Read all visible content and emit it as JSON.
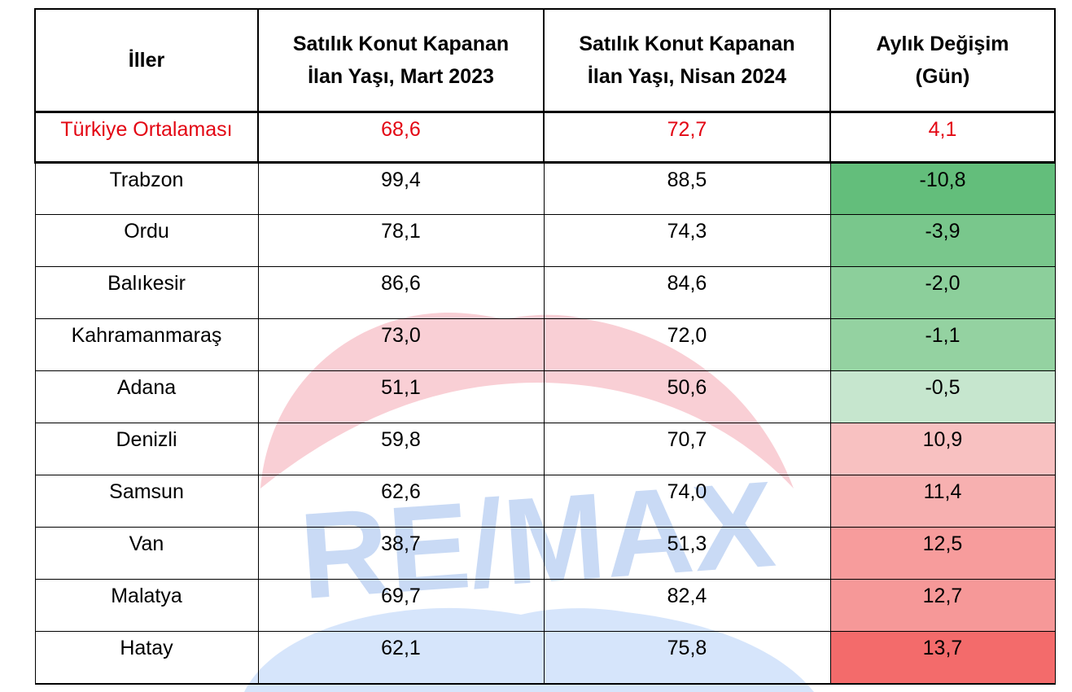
{
  "table": {
    "headers": [
      {
        "lines": [
          "İller"
        ]
      },
      {
        "lines": [
          "Satılık Konut Kapanan",
          "İlan Yaşı, Mart 2023"
        ]
      },
      {
        "lines": [
          "Satılık Konut Kapanan",
          "İlan Yaşı, Nisan 2024"
        ]
      },
      {
        "lines": [
          "Aylık Değişim",
          "(Gün)"
        ]
      }
    ],
    "average": {
      "name": "Türkiye Ortalaması",
      "mar_2023": "68,6",
      "apr_2024": "72,7",
      "change": "4,1"
    },
    "rows": [
      {
        "name": "Trabzon",
        "mar_2023": "99,4",
        "apr_2024": "88,5",
        "change": "-10,8",
        "change_color": "#63be7b"
      },
      {
        "name": "Ordu",
        "mar_2023": "78,1",
        "apr_2024": "74,3",
        "change": "-3,9",
        "change_color": "#79c78c"
      },
      {
        "name": "Balıkesir",
        "mar_2023": "86,6",
        "apr_2024": "84,6",
        "change": "-2,0",
        "change_color": "#8ccf9b"
      },
      {
        "name": "Kahramanmaraş",
        "mar_2023": "73,0",
        "apr_2024": "72,0",
        "change": "-1,1",
        "change_color": "#94d2a1"
      },
      {
        "name": "Adana",
        "mar_2023": "51,1",
        "apr_2024": "50,6",
        "change": "-0,5",
        "change_color": "#c6e6ce"
      },
      {
        "name": "Denizli",
        "mar_2023": "59,8",
        "apr_2024": "70,7",
        "change": "10,9",
        "change_color": "#f8c1c1"
      },
      {
        "name": "Samsun",
        "mar_2023": "62,6",
        "apr_2024": "74,0",
        "change": "11,4",
        "change_color": "#f7b0b0"
      },
      {
        "name": "Van",
        "mar_2023": "38,7",
        "apr_2024": "51,3",
        "change": "12,5",
        "change_color": "#f79c9c"
      },
      {
        "name": "Malatya",
        "mar_2023": "69,7",
        "apr_2024": "82,4",
        "change": "12,7",
        "change_color": "#f69898"
      },
      {
        "name": "Hatay",
        "mar_2023": "62,1",
        "apr_2024": "75,8",
        "change": "13,7",
        "change_color": "#f36b6b"
      }
    ]
  },
  "watermark": {
    "logo_text": "RE/MAX",
    "colors": {
      "red": "#f4b8c2",
      "blue": "#c8dcf8",
      "blue_text": "#b9d0f4"
    }
  }
}
